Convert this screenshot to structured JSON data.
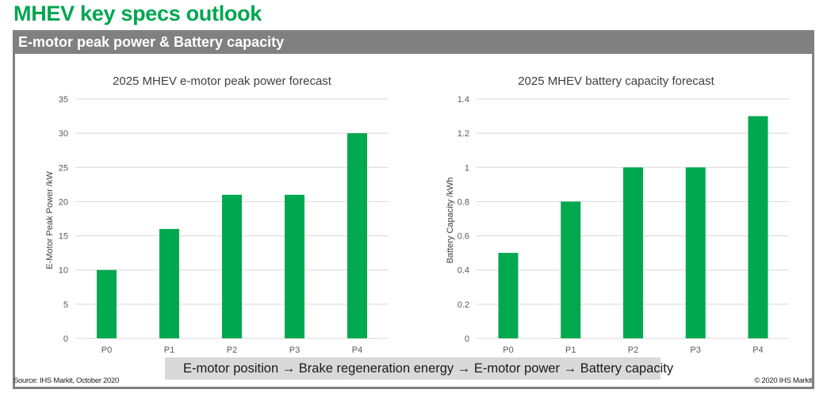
{
  "page": {
    "title": "MHEV key specs outlook",
    "section_header": "E-motor peak power & Battery capacity",
    "banner": "E-motor position → Brake regeneration energy → E-motor power → Battery capacity",
    "source": "Source: IHS Markit, October 2020",
    "copyright": "© 2020 IHS Markit"
  },
  "colors": {
    "brand_green": "#00a650",
    "bar": "#00a84f",
    "header_gray": "#808080",
    "banner_gray": "#d9d9d9",
    "gridline": "#d9d9d9"
  },
  "chart_data": [
    {
      "type": "bar",
      "title": "2025 MHEV e-motor peak power forecast",
      "xlabel": "",
      "ylabel": "E-Motor Peak Power /kW",
      "categories": [
        "P0",
        "P1",
        "P2",
        "P3",
        "P4"
      ],
      "values": [
        10,
        16,
        21,
        21,
        30
      ],
      "ylim": [
        0,
        35
      ],
      "yticks": [
        0,
        5,
        10,
        15,
        20,
        25,
        30,
        35
      ],
      "ytick_labels": [
        "0",
        "5",
        "10",
        "15",
        "20",
        "25",
        "30",
        "35"
      ],
      "grid": true,
      "legend": "none"
    },
    {
      "type": "bar",
      "title": "2025 MHEV battery capacity forecast",
      "xlabel": "",
      "ylabel": "Battery Capacity /kWh",
      "categories": [
        "P0",
        "P1",
        "P2",
        "P3",
        "P4"
      ],
      "values": [
        0.5,
        0.8,
        1.0,
        1.0,
        1.3
      ],
      "ylim": [
        0,
        1.4
      ],
      "yticks": [
        0,
        0.2,
        0.4,
        0.6,
        0.8,
        1.0,
        1.2,
        1.4
      ],
      "ytick_labels": [
        "0",
        "0.2",
        "0.4",
        "0.6",
        "0.8",
        "1",
        "1.2",
        "1.4"
      ],
      "grid": true,
      "legend": "none"
    }
  ]
}
